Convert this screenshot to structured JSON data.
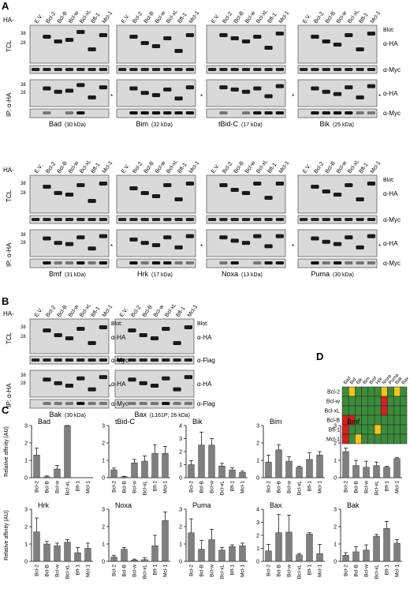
{
  "panels": {
    "A": "A",
    "B": "B",
    "C": "C",
    "D": "D"
  },
  "labels": {
    "ha_prefix": "HA-",
    "blot": "Blot:",
    "tcl": "TCL",
    "ip": "IP: α-HA",
    "alpha_ha": "α-HA",
    "alpha_myc": "α-Myc",
    "alpha_flag": "α-Flag",
    "asterisk": "*",
    "mw_38": "38",
    "mw_28": "28",
    "ylabel_c": "Relative affinity (AU)"
  },
  "lanes_a": [
    "E.V.",
    "Bcl-2",
    "Bcl-B",
    "Bcl-w",
    "Bcl-xL",
    "Bfl-1",
    "Mcl-1"
  ],
  "lanes_b": [
    "E.V.",
    "Bcl-2",
    "Bcl-B",
    "Bcl-w",
    "Bcl-xL",
    "Bfl-1",
    "Mcl-1"
  ],
  "blots_a_row1": [
    {
      "name": "Bad",
      "mw": "(30 kDa)"
    },
    {
      "name": "Bim",
      "mw": "(32 kDa)"
    },
    {
      "name": "tBid-C",
      "mw": "(17 kDa)"
    },
    {
      "name": "Bik",
      "mw": "(25 kDa)"
    }
  ],
  "blots_a_row2": [
    {
      "name": "Bmf",
      "mw": "(31 kDa)"
    },
    {
      "name": "Hrk",
      "mw": "(17 kDa)"
    },
    {
      "name": "Noxa",
      "mw": "(13 kDa)"
    },
    {
      "name": "Puma",
      "mw": "(30 kDa)"
    }
  ],
  "blots_b": [
    {
      "name": "Bak",
      "mw": "(30 kDa)"
    },
    {
      "name": "Bax",
      "mw": "(L161P; 26 kDa)"
    }
  ],
  "heatmap": {
    "columns": [
      "Bad",
      "Bid",
      "Bik",
      "Bim",
      "Bmf",
      "Hrk",
      "Noxa",
      "Puma",
      "Bak",
      "Bax"
    ],
    "rows": [
      "Bcl-2",
      "Bcl-w",
      "Bcl-xL",
      "Bcl-B",
      "Bfl-1",
      "Mcl-1"
    ],
    "cells": [
      [
        "green",
        "yellow",
        "green",
        "green",
        "green",
        "green",
        "yellow",
        "green",
        "yellow",
        "green"
      ],
      [
        "green",
        "green",
        "green",
        "green",
        "green",
        "green",
        "red",
        "green",
        "green",
        "green"
      ],
      [
        "green",
        "green",
        "green",
        "green",
        "green",
        "green",
        "red",
        "green",
        "green",
        "green"
      ],
      [
        "red",
        "red",
        "green",
        "green",
        "green",
        "green",
        "green",
        "green",
        "green",
        "green"
      ],
      [
        "red",
        "green",
        "green",
        "green",
        "green",
        "yellow",
        "green",
        "green",
        "green",
        "green"
      ],
      [
        "red",
        "green",
        "yellow",
        "green",
        "green",
        "green",
        "green",
        "green",
        "green",
        "green"
      ]
    ],
    "colors": {
      "green": "#3a8c3a",
      "yellow": "#f2c51a",
      "red": "#d42020"
    }
  },
  "chart_data": [
    {
      "type": "bar",
      "title": "Bad",
      "categories": [
        "Bcl-2",
        "Bcl-B",
        "Bcl-w",
        "Bcl-xL",
        "Bfl-1",
        "Mcl-1"
      ],
      "values": [
        1.3,
        0.05,
        0.5,
        3.0,
        0.0,
        0.0
      ],
      "errors": [
        0.4,
        0.05,
        0.2,
        0.15,
        0,
        0
      ],
      "ylim": [
        0,
        3
      ],
      "yticks": [
        "0",
        "1",
        "2",
        "3"
      ]
    },
    {
      "type": "bar",
      "title": "tBid-C",
      "categories": [
        "Bcl-2",
        "Bcl-B",
        "Bcl-w",
        "Bcl-xL",
        "Bfl-1",
        "Mcl-1"
      ],
      "values": [
        0.45,
        0.05,
        0.85,
        0.95,
        1.4,
        1.4
      ],
      "errors": [
        0.1,
        0.03,
        0.2,
        0.3,
        0.5,
        0.4
      ],
      "ylim": [
        0,
        3
      ],
      "yticks": [
        "0",
        "1",
        "2",
        "3"
      ]
    },
    {
      "type": "bar",
      "title": "Bik",
      "categories": [
        "Bcl-2",
        "Bcl-B",
        "Bcl-w",
        "Bcl-xL",
        "Bfl-1",
        "Mcl-1"
      ],
      "values": [
        1.0,
        2.5,
        2.5,
        0.9,
        0.6,
        0.4
      ],
      "errors": [
        0.3,
        1.0,
        0.5,
        0.2,
        0.15,
        0.1
      ],
      "ylim": [
        0,
        4
      ],
      "yticks": [
        "0",
        "1",
        "2",
        "3",
        "4"
      ]
    },
    {
      "type": "bar",
      "title": "Bim",
      "categories": [
        "Bcl-2",
        "Bcl-B",
        "Bcl-w",
        "Bcl-xL",
        "Bfl-1",
        "Mcl-1"
      ],
      "values": [
        0.9,
        1.6,
        0.95,
        0.6,
        1.05,
        1.3
      ],
      "errors": [
        0.4,
        0.3,
        0.25,
        0.05,
        0.4,
        0.2
      ],
      "ylim": [
        0,
        3
      ],
      "yticks": [
        "0",
        "1",
        "2",
        "3"
      ]
    },
    {
      "type": "bar",
      "title": "Bmf",
      "categories": [
        "Bcl-2",
        "Bcl-B",
        "Bcl-w",
        "Bcl-xL",
        "Bfl-1",
        "Mcl-1"
      ],
      "values": [
        1.5,
        0.7,
        0.6,
        0.7,
        0.6,
        1.1
      ],
      "errors": [
        0.2,
        0.3,
        0.35,
        0.2,
        0.05,
        0.05
      ],
      "ylim": [
        0,
        3
      ],
      "yticks": [
        "0",
        "1",
        "2",
        "3"
      ]
    },
    {
      "type": "bar",
      "title": "Hrk",
      "categories": [
        "Bcl-2",
        "Bcl-B",
        "Bcl-w",
        "Bcl-xL",
        "Bfl-1",
        "Mcl-1"
      ],
      "values": [
        1.7,
        1.0,
        0.9,
        1.1,
        0.5,
        0.75
      ],
      "errors": [
        0.8,
        0.15,
        0.15,
        0.15,
        0.3,
        0.3
      ],
      "ylim": [
        0,
        3
      ],
      "yticks": [
        "0",
        "1",
        "2",
        "3"
      ]
    },
    {
      "type": "bar",
      "title": "Noxa",
      "categories": [
        "Bcl-2",
        "Bcl-B",
        "Bcl-w",
        "Bcl-xL",
        "Bfl-1",
        "Mcl-1"
      ],
      "values": [
        0.25,
        0.7,
        0.08,
        0.1,
        0.9,
        2.35
      ],
      "errors": [
        0.1,
        0.1,
        0.05,
        0.1,
        0.6,
        0.5
      ],
      "ylim": [
        0,
        3
      ],
      "yticks": [
        "0",
        "1",
        "2",
        "3"
      ]
    },
    {
      "type": "bar",
      "title": "Puma",
      "categories": [
        "Bcl-2",
        "Bcl-B",
        "Bcl-w",
        "Bcl-xL",
        "Bfl-1",
        "Mcl-1"
      ],
      "values": [
        1.65,
        0.7,
        1.25,
        0.65,
        0.85,
        0.9
      ],
      "errors": [
        0.8,
        0.5,
        0.6,
        0.15,
        0.1,
        0.15
      ],
      "ylim": [
        0,
        3
      ],
      "yticks": [
        "0",
        "1",
        "2",
        "3"
      ]
    },
    {
      "type": "bar",
      "title": "Bax",
      "categories": [
        "Bcl-2",
        "Bcl-B",
        "Bcl-w",
        "Bcl-xL",
        "Bfl-1",
        "Mcl-1"
      ],
      "values": [
        0.8,
        2.2,
        2.25,
        0.5,
        2.1,
        0.6
      ],
      "errors": [
        0.5,
        1.4,
        1.3,
        0.1,
        0.1,
        0.7
      ],
      "ylim": [
        0,
        4
      ],
      "yticks": [
        "0",
        "1",
        "2",
        "3",
        "4"
      ]
    },
    {
      "type": "bar",
      "title": "Bak",
      "categories": [
        "Bcl-2",
        "Bcl-B",
        "Bcl-w",
        "Bcl-xL",
        "Bfl-1",
        "Mcl-1"
      ],
      "values": [
        0.35,
        0.55,
        0.65,
        1.45,
        1.9,
        1.05
      ],
      "errors": [
        0.15,
        0.3,
        0.3,
        0.1,
        0.4,
        0.2
      ],
      "ylim": [
        0,
        3
      ],
      "yticks": [
        "0",
        "1",
        "2",
        "3"
      ]
    }
  ]
}
